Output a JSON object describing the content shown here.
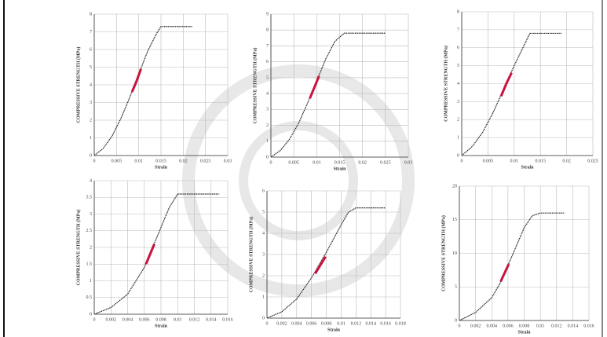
{
  "chart_data": [
    {
      "type": "line",
      "xlabel": "Strain",
      "ylabel": "COMPRESSIVE STRENGTH (MPa)",
      "xlim": [
        0,
        0.03
      ],
      "xticks": [
        0,
        0.005,
        0.01,
        0.015,
        0.02,
        0.025,
        0.03
      ],
      "ylim": [
        0,
        8
      ],
      "yticks": [
        0,
        1,
        2,
        3,
        4,
        5,
        6,
        7,
        8
      ],
      "grid": true,
      "series": [
        {
          "color": "#222222",
          "x": [
            0,
            0.002,
            0.004,
            0.006,
            0.008,
            0.01,
            0.012,
            0.014,
            0.015,
            0.018,
            0.02,
            0.022
          ],
          "values": [
            0,
            0.4,
            1.1,
            2.1,
            3.3,
            4.6,
            5.9,
            6.9,
            7.3,
            7.3,
            7.3,
            7.3
          ]
        },
        {
          "color": "#c8143c",
          "x": [
            0.0085,
            0.0095,
            0.0105
          ],
          "values": [
            3.6,
            4.2,
            4.9
          ]
        }
      ]
    },
    {
      "type": "line",
      "xlabel": "Strain",
      "ylabel": "COMPRESSIVE STRENGTH (MPa)",
      "xlim": [
        0,
        0.03
      ],
      "xticks": [
        0,
        0.005,
        0.01,
        0.015,
        0.02,
        0.025,
        0.03
      ],
      "ylim": [
        0,
        9
      ],
      "yticks": [
        0,
        1,
        2,
        3,
        4,
        5,
        6,
        7,
        8,
        9
      ],
      "grid": true,
      "series": [
        {
          "color": "#222222",
          "x": [
            0,
            0.002,
            0.004,
            0.006,
            0.008,
            0.01,
            0.012,
            0.014,
            0.016,
            0.019,
            0.022,
            0.025
          ],
          "values": [
            0,
            0.4,
            1.1,
            2.1,
            3.4,
            4.8,
            6.2,
            7.3,
            7.8,
            7.8,
            7.8,
            7.8
          ]
        },
        {
          "color": "#c8143c",
          "x": [
            0.0085,
            0.0095,
            0.0105
          ],
          "values": [
            3.7,
            4.4,
            5.1
          ]
        }
      ]
    },
    {
      "type": "line",
      "xlabel": "Strain",
      "ylabel": "COMPRESSIVE STRENGTH (MPa)",
      "xlim": [
        0,
        0.025
      ],
      "xticks": [
        0,
        0.005,
        0.01,
        0.015,
        0.02,
        0.025
      ],
      "ylim": [
        0,
        8
      ],
      "yticks": [
        0,
        1,
        2,
        3,
        4,
        5,
        6,
        7,
        8
      ],
      "grid": true,
      "series": [
        {
          "color": "#222222",
          "x": [
            0,
            0.002,
            0.004,
            0.006,
            0.008,
            0.01,
            0.012,
            0.013,
            0.015,
            0.017,
            0.019
          ],
          "values": [
            0,
            0.5,
            1.3,
            2.4,
            3.7,
            5.0,
            6.2,
            6.8,
            6.8,
            6.8,
            6.8
          ]
        },
        {
          "color": "#c8143c",
          "x": [
            0.0075,
            0.0085,
            0.0095
          ],
          "values": [
            3.3,
            4.0,
            4.6
          ]
        }
      ]
    },
    {
      "type": "line",
      "xlabel": "Strain",
      "ylabel": "COMPRESSIVE STRENGTH (MPa)",
      "xlim": [
        0,
        0.016
      ],
      "xticks": [
        0,
        0.002,
        0.004,
        0.006,
        0.008,
        0.01,
        0.012,
        0.014,
        0.016
      ],
      "ylim": [
        0,
        4
      ],
      "yticks": [
        0,
        0.5,
        1,
        1.5,
        2,
        2.5,
        3,
        3.5,
        4
      ],
      "grid": true,
      "series": [
        {
          "color": "#222222",
          "x": [
            0,
            0.002,
            0.004,
            0.006,
            0.007,
            0.008,
            0.009,
            0.01,
            0.012,
            0.014,
            0.015
          ],
          "values": [
            0,
            0.2,
            0.6,
            1.4,
            2.0,
            2.6,
            3.2,
            3.6,
            3.6,
            3.6,
            3.6
          ]
        },
        {
          "color": "#c8143c",
          "x": [
            0.0062,
            0.0067,
            0.0072
          ],
          "values": [
            1.5,
            1.8,
            2.1
          ]
        }
      ]
    },
    {
      "type": "line",
      "xlabel": "Strain",
      "ylabel": "COMPRESSIVE STRENGTH (MPa)",
      "xlim": [
        0,
        0.018
      ],
      "xticks": [
        0,
        0.002,
        0.004,
        0.006,
        0.008,
        0.01,
        0.012,
        0.014,
        0.016,
        0.018
      ],
      "ylim": [
        0,
        6
      ],
      "yticks": [
        0,
        1,
        2,
        3,
        4,
        5,
        6
      ],
      "grid": true,
      "series": [
        {
          "color": "#222222",
          "x": [
            0,
            0.002,
            0.004,
            0.006,
            0.008,
            0.01,
            0.011,
            0.012,
            0.014,
            0.016
          ],
          "values": [
            0,
            0.3,
            0.9,
            1.9,
            3.1,
            4.4,
            5.0,
            5.2,
            5.2,
            5.2
          ]
        },
        {
          "color": "#c8143c",
          "x": [
            0.0065,
            0.0072,
            0.0079
          ],
          "values": [
            2.1,
            2.5,
            2.9
          ]
        }
      ]
    },
    {
      "type": "line",
      "xlabel": "Strain",
      "ylabel": "COMPRESSIVE STRENGTH (MPa)",
      "xlim": [
        0,
        0.016
      ],
      "xticks": [
        0,
        0.002,
        0.004,
        0.006,
        0.008,
        0.01,
        0.012,
        0.014,
        0.016
      ],
      "ylim": [
        0,
        20
      ],
      "yticks": [
        0,
        5,
        10,
        15,
        20
      ],
      "grid": true,
      "series": [
        {
          "color": "#222222",
          "x": [
            0,
            0.002,
            0.004,
            0.005,
            0.006,
            0.007,
            0.008,
            0.009,
            0.01,
            0.012,
            0.013
          ],
          "values": [
            0,
            1.2,
            3.4,
            5.5,
            8.2,
            11.0,
            13.8,
            15.6,
            16.0,
            16.0,
            16.0
          ]
        },
        {
          "color": "#c8143c",
          "x": [
            0.0051,
            0.0056,
            0.0061
          ],
          "values": [
            5.8,
            7.1,
            8.4
          ]
        }
      ]
    }
  ]
}
